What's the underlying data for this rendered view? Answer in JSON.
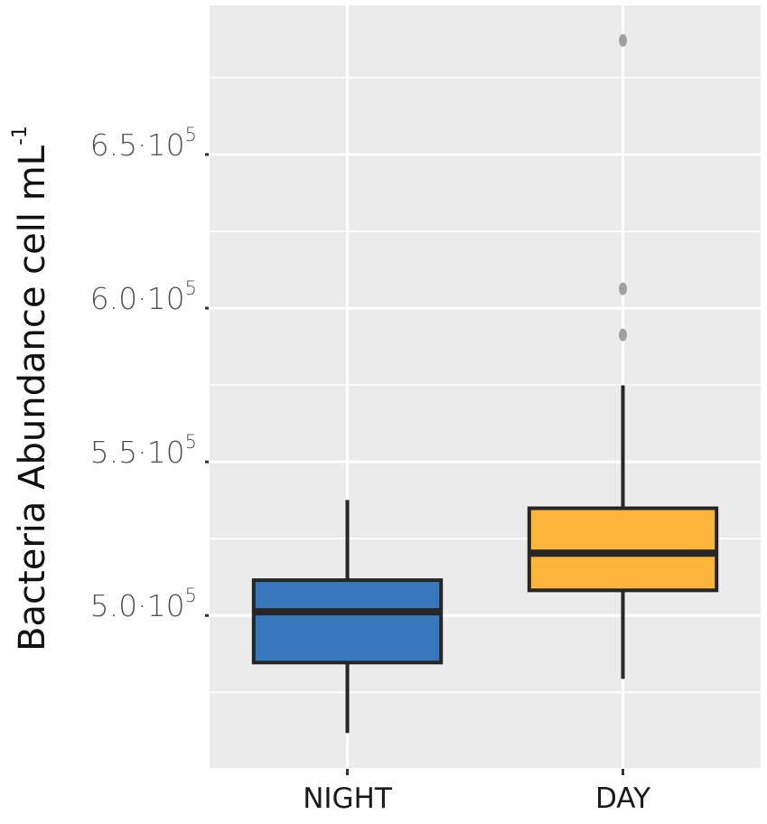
{
  "chart_data": {
    "type": "boxplot",
    "title": "",
    "xlabel": "",
    "ylabel": "Bacteria Abundance cell mL",
    "ylabel_superscript": "-1",
    "categories": [
      "NIGHT",
      "DAY"
    ],
    "colors": {
      "NIGHT": "#3777BB",
      "DAY": "#FDB43A",
      "outlier": "#A0A0A0",
      "outline": "#262626",
      "panel": "#EBEBEB",
      "grid": "#FFFFFF"
    },
    "series": [
      {
        "name": "NIGHT",
        "whisker_low": 461800,
        "q1": 484700,
        "median": 501200,
        "q3": 511500,
        "whisker_high": 537600,
        "outliers": []
      },
      {
        "name": "DAY",
        "whisker_low": 479400,
        "q1": 508200,
        "median": 520300,
        "q3": 534900,
        "whisker_high": 574900,
        "outliers": [
          591300,
          606300,
          687100
        ]
      }
    ],
    "yticks": [
      {
        "value": 500000,
        "mantissa": "5.0·10",
        "exp": "5"
      },
      {
        "value": 550000,
        "mantissa": "5.5·10",
        "exp": "5"
      },
      {
        "value": 600000,
        "mantissa": "6.0·10",
        "exp": "5"
      },
      {
        "value": 650000,
        "mantissa": "6.5·10",
        "exp": "5"
      }
    ],
    "ylim": [
      450400,
      698500
    ],
    "grid": true,
    "legend": null
  }
}
